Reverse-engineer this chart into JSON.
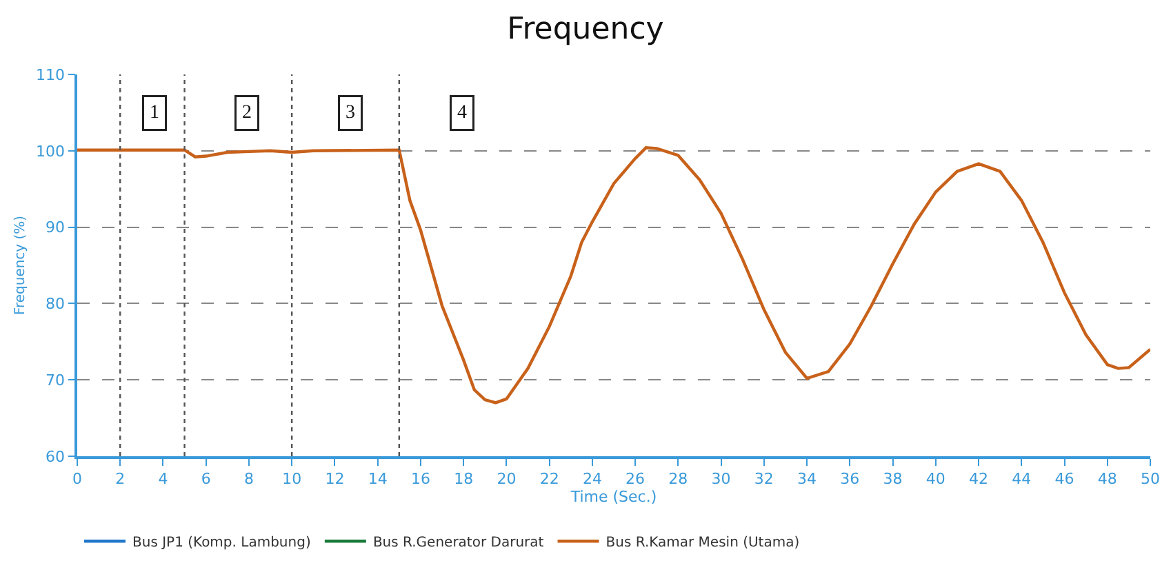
{
  "chart_data": {
    "type": "line",
    "title": "Frequency",
    "xlabel": "Time (Sec.)",
    "ylabel": "Frequency (%)",
    "x": [
      0,
      5,
      5.5,
      6,
      7,
      8,
      9,
      10,
      11,
      15,
      15.5,
      16,
      17,
      18,
      18.5,
      19,
      19.5,
      20,
      21,
      22,
      23,
      23.5,
      24,
      25,
      26,
      26.5,
      27,
      28,
      29,
      30,
      31,
      32,
      33,
      34,
      35,
      36,
      37,
      38,
      39,
      40,
      41,
      42,
      43,
      44,
      45,
      46,
      47,
      48,
      48.5,
      49,
      50
    ],
    "series": [
      {
        "name": "Bus JP1 (Komp. Lambung)",
        "color": "#1f77c9",
        "values": [
          null,
          null,
          null,
          null,
          null,
          null,
          null,
          null,
          null,
          null,
          null,
          null,
          null,
          null,
          null,
          null,
          null,
          null,
          null,
          null,
          null,
          null,
          null,
          null,
          null,
          null,
          null,
          null,
          null,
          null,
          null,
          null,
          null,
          null,
          null,
          null,
          null,
          null,
          null,
          null,
          null,
          null,
          null,
          null,
          null,
          null,
          null,
          null,
          null,
          null,
          null
        ]
      },
      {
        "name": "Bus R.Generator Darurat",
        "color": "#1a7a3a",
        "values": [
          null,
          null,
          null,
          null,
          null,
          null,
          null,
          null,
          null,
          null,
          null,
          null,
          null,
          null,
          null,
          null,
          null,
          null,
          null,
          null,
          null,
          null,
          null,
          null,
          null,
          null,
          null,
          null,
          null,
          null,
          null,
          null,
          null,
          null,
          null,
          null,
          null,
          null,
          null,
          null,
          null,
          null,
          null,
          null,
          null,
          null,
          null,
          null,
          null,
          null,
          null
        ]
      },
      {
        "name": "Bus R.Kamar Mesin (Utama)",
        "color": "#c8611a",
        "values": [
          100.1,
          100.1,
          99.2,
          99.3,
          99.8,
          99.9,
          100,
          99.8,
          100,
          100.1,
          93.5,
          89.6,
          79.7,
          72.6,
          68.7,
          67.4,
          67,
          67.5,
          71.5,
          77,
          83.6,
          88,
          90.7,
          95.7,
          99,
          100.4,
          100.3,
          99.4,
          96.2,
          91.8,
          85.8,
          79.2,
          73.6,
          70.2,
          71.1,
          74.7,
          79.7,
          85.2,
          90.4,
          94.6,
          97.3,
          98.3,
          97.3,
          93.5,
          88,
          81.4,
          75.9,
          72,
          71.5,
          71.6,
          74
        ]
      }
    ],
    "xlim": [
      0,
      50
    ],
    "xticks": [
      0,
      2,
      4,
      6,
      8,
      10,
      12,
      14,
      16,
      18,
      20,
      22,
      24,
      26,
      28,
      30,
      32,
      34,
      36,
      38,
      40,
      42,
      44,
      46,
      48,
      50
    ],
    "ylim": [
      60,
      110
    ],
    "yticks": [
      60,
      70,
      80,
      90,
      100,
      110
    ],
    "ref_lines": [
      {
        "axis": "x",
        "value": 2,
        "color": "#555555",
        "line_style": "dotted"
      },
      {
        "axis": "x",
        "value": 5,
        "color": "#555555",
        "line_style": "dotted"
      },
      {
        "axis": "x",
        "value": 10,
        "color": "#555555",
        "line_style": "dotted"
      },
      {
        "axis": "x",
        "value": 15,
        "color": "#555555",
        "line_style": "dotted"
      }
    ],
    "annotations": [
      {
        "text": "1",
        "x": 3.6,
        "y": 105
      },
      {
        "text": "2",
        "x": 7.9,
        "y": 105
      },
      {
        "text": "3",
        "x": 12.7,
        "y": 105
      },
      {
        "text": "4",
        "x": 17.9,
        "y": 105
      }
    ],
    "grid": "y",
    "legend": "bottom left",
    "marker": "none",
    "line_style": "solid"
  }
}
